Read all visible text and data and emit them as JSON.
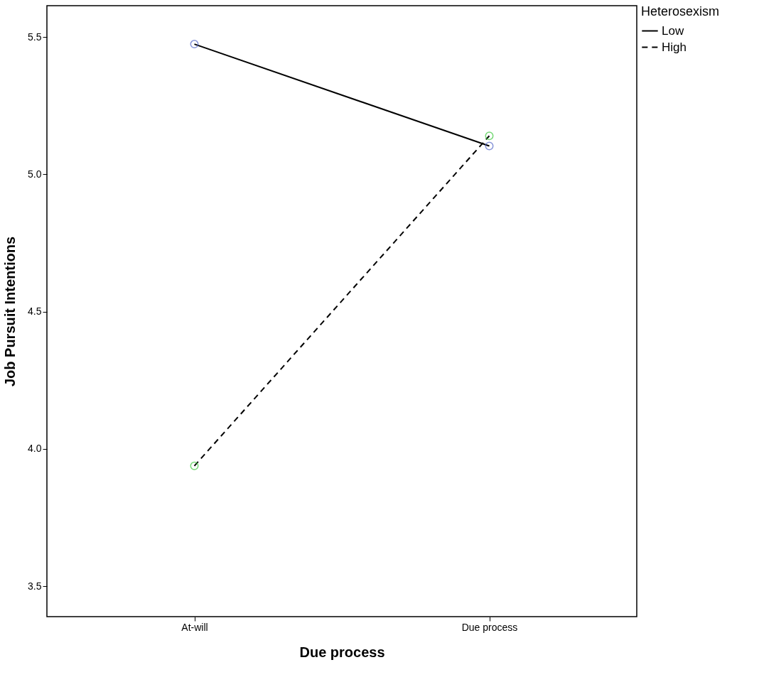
{
  "chart_data": {
    "type": "line",
    "xlabel": "Due process",
    "ylabel": "Job Pursuit Intentions",
    "legend_title": "Heterosexism",
    "categories": [
      "At-will",
      "Due process"
    ],
    "series": [
      {
        "name": "Low",
        "color": "#000000",
        "colors": [
          "#5468c8",
          "#5468c8"
        ],
        "line_style": "solid",
        "values": [
          5.474,
          5.103
        ]
      },
      {
        "name": "High",
        "color": "#000000",
        "colors": [
          "#3cc83c",
          "#3cc83c"
        ],
        "line_style": "dashed",
        "values": [
          3.938,
          5.14
        ]
      }
    ],
    "ylim": [
      3.389,
      5.614
    ],
    "yticks": [
      3.5,
      {
        "value": 4,
        "label": "4.0"
      },
      4.5,
      {
        "value": 5,
        "label": "5.0"
      },
      5.5
    ],
    "grid": false,
    "legend": "top right",
    "marker": "circle"
  }
}
